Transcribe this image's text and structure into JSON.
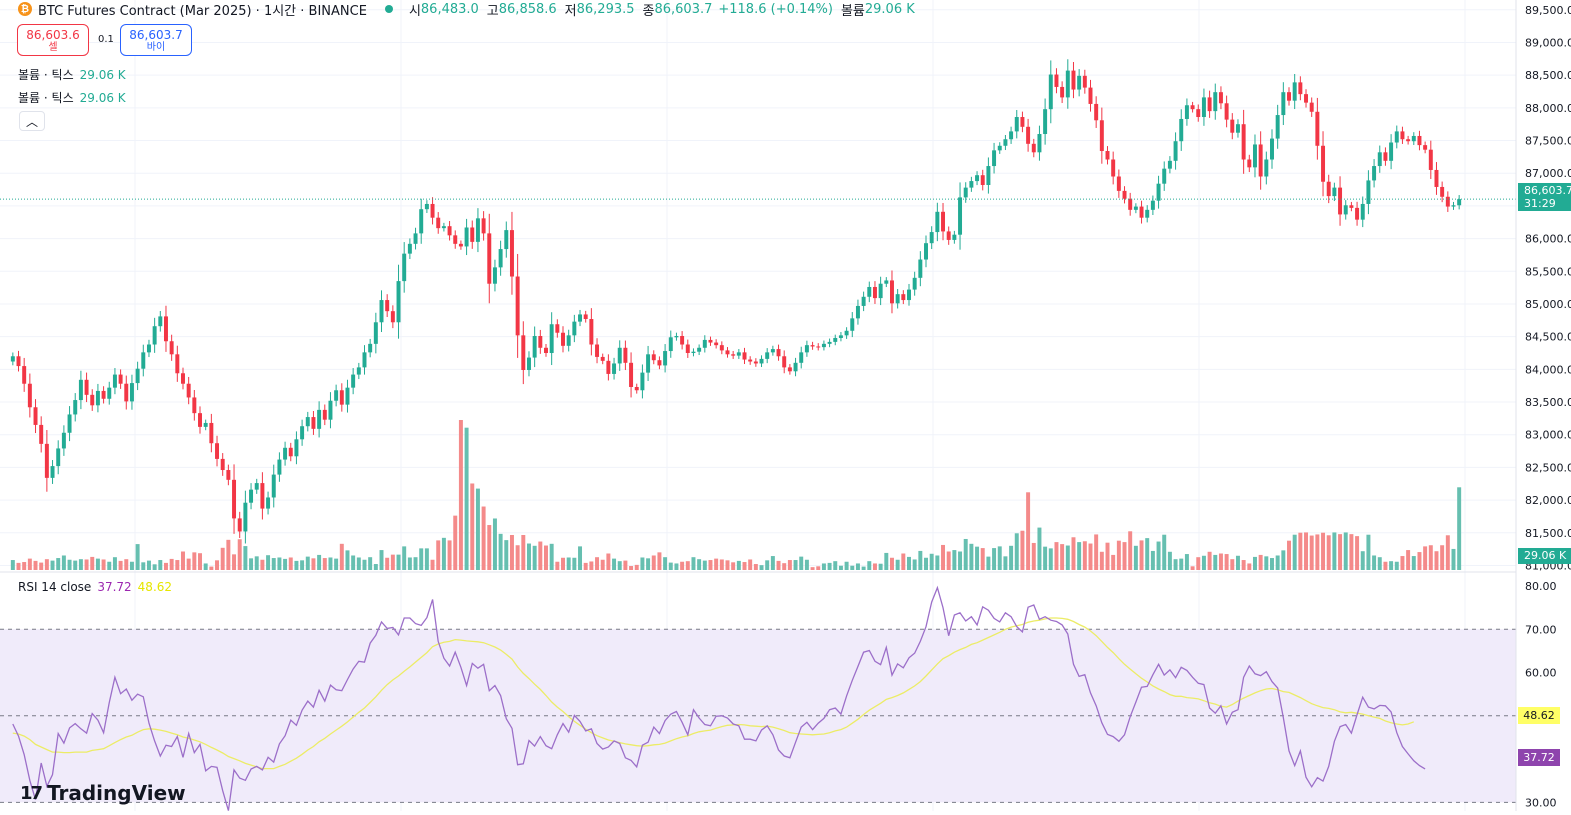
{
  "legend": {
    "symbol_icon": "bitcoin-icon",
    "title": "BTC Futures Contract (Mar 2025) · 1시간 · BINANCE",
    "o_label": "시",
    "o_value": "86,483.0",
    "h_label": "고",
    "h_value": "86,858.6",
    "l_label": "저",
    "l_value": "86,293.5",
    "c_label": "종",
    "c_value": "86,603.7",
    "change": "+118.6 (+0.14%)",
    "vol_label": "볼륨",
    "vol_value": "29.06 K"
  },
  "trade": {
    "sell_price": "86,603.6",
    "sell_label": "셀",
    "spread": "0.1",
    "buy_price": "86,603.7",
    "buy_label": "바이"
  },
  "indicators": [
    {
      "label": "볼륨 · 틱스",
      "value": "29.06 K"
    },
    {
      "label": "볼륨 · 틱스",
      "value": "29.06 K"
    }
  ],
  "rsi_legend": {
    "label": "RSI 14 close",
    "value": "37.72",
    "ma_value": "48.62"
  },
  "price_axis": {
    "labels": [
      "89,500.0",
      "89,000.0",
      "88,500.0",
      "88,000.0",
      "87,500.0",
      "87,000.0",
      "86,500.0",
      "86,000.0",
      "85,500.0",
      "85,000.0",
      "84,500.0",
      "84,000.0",
      "83,500.0",
      "83,000.0",
      "82,500.0",
      "82,000.0",
      "81,500.0",
      "81,000.0"
    ],
    "values": [
      89500,
      89000,
      88500,
      88000,
      87500,
      87000,
      86500,
      86000,
      85500,
      85000,
      84500,
      84000,
      83500,
      83000,
      82500,
      82000,
      81500,
      81000
    ]
  },
  "rsi_axis": {
    "labels": [
      "80.00",
      "70.00",
      "60.00",
      "50.00",
      "40.00",
      "30.00"
    ],
    "values": [
      80,
      70,
      60,
      50,
      40,
      30
    ]
  },
  "last_price_tag": {
    "price": "86,603.7",
    "countdown": "31:29"
  },
  "volume_tag": "29.06 K",
  "rsi_tags": {
    "ma": "48.62",
    "rsi": "37.72"
  },
  "colors": {
    "up": "#22ab94",
    "down": "#f23645",
    "up_vol": "#66bfb0",
    "down_vol": "#f48a8a",
    "rsi": "#9c6fc9",
    "rsi_ma": "#ecec66",
    "band_fill": "#f0ebfa"
  },
  "logo": {
    "icon": "tradingview-logo-icon",
    "text": "TradingView"
  },
  "chart_data": {
    "type": "candlestick",
    "close_values": [
      84200,
      84050,
      83780,
      83420,
      83150,
      82860,
      82340,
      82520,
      82790,
      83030,
      83310,
      83530,
      83840,
      83610,
      83450,
      83670,
      83550,
      83720,
      83920,
      83780,
      83510,
      83790,
      84010,
      84260,
      84380,
      84660,
      84810,
      84430,
      84230,
      83940,
      83780,
      83570,
      83330,
      83120,
      83180,
      82870,
      82630,
      82460,
      82310,
      81720,
      81520,
      81960,
      82160,
      82260,
      81870,
      82040,
      82390,
      82620,
      82800,
      82670,
      82930,
      83130,
      83270,
      83090,
      83380,
      83230,
      83520,
      83680,
      83460,
      83720,
      83920,
      84030,
      84260,
      84390,
      84720,
      85060,
      84890,
      84720,
      85350,
      85770,
      85920,
      86080,
      86450,
      86530,
      86320,
      86160,
      86190,
      86050,
      85920,
      85880,
      86170,
      85950,
      86310,
      86080,
      85310,
      85560,
      85840,
      86130,
      85420,
      84520,
      83990,
      84180,
      84510,
      84330,
      84250,
      84690,
      84560,
      84360,
      84520,
      84730,
      84840,
      84770,
      84380,
      84190,
      84130,
      83930,
      84090,
      84330,
      84100,
      83730,
      83680,
      83950,
      84230,
      84140,
      84060,
      84280,
      84490,
      84510,
      84380,
      84250,
      84270,
      84330,
      84450,
      84410,
      84370,
      84290,
      84230,
      84210,
      84260,
      84150,
      84120,
      84090,
      84160,
      84260,
      84310,
      84200,
      84030,
      83970,
      84100,
      84260,
      84370,
      84350,
      84340,
      84390,
      84420,
      84480,
      84520,
      84590,
      84780,
      84970,
      85110,
      85260,
      85090,
      85310,
      85360,
      85010,
      85150,
      85060,
      85220,
      85400,
      85680,
      85930,
      86100,
      86410,
      86110,
      85980,
      86060,
      86630,
      86780,
      86880,
      86970,
      86820,
      87110,
      87350,
      87420,
      87520,
      87640,
      87860,
      87710,
      87450,
      87320,
      87600,
      87980,
      88510,
      88320,
      88160,
      88570,
      88280,
      88490,
      88310,
      88060,
      87810,
      87340,
      87210,
      86950,
      86730,
      86610,
      86440,
      86490,
      86320,
      86440,
      86580,
      86840,
      87070,
      87190,
      87490,
      87830,
      88040,
      87980,
      87860,
      88160,
      87950,
      88240,
      88070,
      87820,
      87620,
      87750,
      87210,
      87090,
      87440,
      86950,
      87210,
      87530,
      87890,
      88240,
      88110,
      88390,
      88210,
      88080,
      87940,
      87420,
      86870,
      86650,
      86780,
      86370,
      86510,
      86470,
      86290,
      86530,
      86890,
      87110,
      87320,
      87190,
      87470,
      87640,
      87520,
      87490,
      87570,
      87430,
      87360,
      87050,
      86790,
      86640,
      86490,
      86510,
      86603.7
    ],
    "volume_values": [
      3.5,
      2.5,
      2.8,
      4.0,
      3.2,
      2.6,
      3.8,
      3.3,
      4.2,
      5.1,
      3.6,
      3.3,
      3.8,
      3.7,
      4.6,
      4.0,
      3.7,
      2.9,
      4.5,
      3.2,
      3.8,
      2.9,
      9.1,
      2.7,
      3.3,
      2.0,
      3.5,
      2.5,
      3.9,
      3.5,
      6.5,
      4.0,
      6.2,
      5.9,
      2.3,
      1.2,
      3.4,
      7.8,
      10.6,
      5.5,
      10.8,
      8.4,
      4.1,
      4.8,
      3.6,
      5.2,
      4.2,
      4.4,
      3.9,
      4.4,
      3.2,
      3.4,
      4.7,
      4.1,
      5.3,
      4.2,
      4.4,
      4.0,
      9.2,
      6.9,
      5.1,
      4.4,
      3.6,
      4.5,
      2.1,
      7.0,
      4.3,
      5.4,
      5.4,
      8.3,
      4.4,
      4.5,
      7.6,
      7.6,
      3.6,
      10.4,
      11.3,
      10.4,
      19.1,
      52.7,
      50.0,
      30.4,
      28.6,
      22.3,
      15.8,
      18.1,
      12.7,
      10.5,
      12.3,
      8.7,
      12.3,
      9.3,
      8.5,
      10.0,
      8.6,
      9.2,
      2.9,
      4.3,
      4.4,
      4.3,
      8.3,
      2.5,
      3.0,
      4.5,
      3.6,
      5.8,
      4.0,
      3.1,
      3.3,
      1.4,
      1.8,
      4.4,
      4.1,
      5.1,
      6.2,
      4.5,
      2.6,
      2.3,
      2.9,
      3.1,
      4.5,
      3.8,
      3.3,
      3.5,
      4.0,
      3.7,
      3.4,
      2.7,
      3.2,
      2.8,
      3.7,
      2.1,
      1.7,
      3.4,
      4.9,
      3.2,
      2.4,
      3.5,
      3.5,
      4.7,
      3.6,
      1.0,
      1.3,
      2.3,
      2.5,
      3.1,
      1.5,
      2.9,
      1.5,
      2.3,
      1.2,
      3.1,
      2.3,
      2.2,
      6.0,
      4.3,
      3.6,
      5.8,
      4.6,
      3.7,
      6.7,
      4.3,
      5.7,
      5.1,
      8.8,
      6.5,
      7.0,
      6.5,
      10.9,
      9.2,
      8.2,
      7.7,
      4.7,
      7.7,
      8.3,
      4.8,
      8.5,
      12.9,
      13.8,
      27.3,
      9.5,
      14.9,
      8.2,
      7.6,
      9.8,
      9.1,
      8.6,
      11.5,
      9.8,
      10.1,
      9.3,
      12.5,
      6.4,
      9.6,
      5.3,
      10.3,
      9.8,
      13.6,
      8.5,
      10.4,
      11.2,
      6.7,
      10.0,
      12.4,
      6.4,
      3.8,
      4.0,
      5.6,
      1.3,
      4.5,
      5.0,
      6.4,
      5.3,
      5.8,
      5.6,
      3.8,
      5.0,
      3.5,
      2.3,
      4.6,
      5.3,
      4.8,
      4.2,
      5.1,
      6.9,
      10.3,
      12.4,
      13.1,
      13.2,
      12.1,
      12.5,
      13.1,
      12.2,
      13.2,
      12.6,
      13.2,
      12.6,
      11.9,
      6.6,
      12.4,
      5.1,
      4.5,
      2.9,
      3.1,
      2.9,
      4.9,
      7.0,
      4.9,
      6.3,
      8.3,
      8.7,
      6.6,
      8.7,
      12.2,
      7.4,
      29.06
    ],
    "rsi_values": [
      48.1,
      45.3,
      41.0,
      35.0,
      30.6,
      39.1,
      33.7,
      36.4,
      45.9,
      43.7,
      47.2,
      48.2,
      47.0,
      46.0,
      50.5,
      49.0,
      46.1,
      53.1,
      58.9,
      55.1,
      56.2,
      53.6,
      55.0,
      54.4,
      48.3,
      44.2,
      40.7,
      43.2,
      42.9,
      45.2,
      40.4,
      45.9,
      41.5,
      43.4,
      37.3,
      38.3,
      38.1,
      32.7,
      28.1,
      37.5,
      35.6,
      35.1,
      37.7,
      38.3,
      37.5,
      40.4,
      39.3,
      43.5,
      45.4,
      49.0,
      47.8,
      51.3,
      53.4,
      52.0,
      55.9,
      53.4,
      57.1,
      56.0,
      55.8,
      58.4,
      60.8,
      62.6,
      62.4,
      66.8,
      68.6,
      71.7,
      70.2,
      70.4,
      68.7,
      72.6,
      72.6,
      71.3,
      70.9,
      72.7,
      76.9,
      67.2,
      63.3,
      61.5,
      64.7,
      61.2,
      57.0,
      62.1,
      61.0,
      61.9,
      55.8,
      57.0,
      54.7,
      49.3,
      47.1,
      38.7,
      38.9,
      44.3,
      43.0,
      45.2,
      43.1,
      42.4,
      45.6,
      48.2,
      46.2,
      50.1,
      48.7,
      46.5,
      47.0,
      43.6,
      42.3,
      42.8,
      44.2,
      43.6,
      40.3,
      39.7,
      38.2,
      43.2,
      43.9,
      47.4,
      45.9,
      48.9,
      50.4,
      51.0,
      48.5,
      45.6,
      51.4,
      49.5,
      48.0,
      47.7,
      49.9,
      50.0,
      49.5,
      48.1,
      47.7,
      44.6,
      44.6,
      44.2,
      46.7,
      47.7,
      45.6,
      42.1,
      40.7,
      40.3,
      43.9,
      47.4,
      48.5,
      46.8,
      48.3,
      49.4,
      51.4,
      51.8,
      50.4,
      54.6,
      58.2,
      61.4,
      64.7,
      65.1,
      62.6,
      61.8,
      65.8,
      59.4,
      62.0,
      61.1,
      63.4,
      64.5,
      67.2,
      70.6,
      76.3,
      79.6,
      75.0,
      68.5,
      73.3,
      73.8,
      71.9,
      72.9,
      71.0,
      75.2,
      74.4,
      72.5,
      71.7,
      73.8,
      72.9,
      70.6,
      69.4,
      75.1,
      75.6,
      72.3,
      72.9,
      72.1,
      71.8,
      71.0,
      68.9,
      61.9,
      59.1,
      59.5,
      55.3,
      52.3,
      48.4,
      45.7,
      45.2,
      44.1,
      45.6,
      49.8,
      53.2,
      56.6,
      56.8,
      59.5,
      61.9,
      59.4,
      60.6,
      58.8,
      61.2,
      60.5,
      58.9,
      57.5,
      57.2,
      51.8,
      50.6,
      52.3,
      48.1,
      50.8,
      51.4,
      58.9,
      61.5,
      59.7,
      59.3,
      60.2,
      57.9,
      56.4,
      49.6,
      41.9,
      38.5,
      41.9,
      35.8,
      33.6,
      35.7,
      34.9,
      38.3,
      44.1,
      47.5,
      48.0,
      46.0,
      50.3,
      54.3,
      52.0,
      51.6,
      52.4,
      52.3,
      50.9,
      46.1,
      42.9,
      41.2,
      39.6,
      38.5,
      37.72
    ],
    "rsi_ma_values": [
      46.0,
      45.8,
      45.3,
      44.5,
      43.4,
      42.8,
      42.2,
      41.6,
      41.6,
      41.5,
      41.5,
      41.6,
      41.6,
      41.6,
      42.0,
      42.2,
      42.4,
      43.1,
      43.8,
      44.5,
      45.1,
      45.5,
      46.2,
      46.8,
      47.0,
      46.9,
      46.7,
      46.4,
      46.0,
      45.6,
      45.1,
      44.8,
      44.4,
      44.0,
      43.4,
      42.7,
      42.1,
      41.4,
      40.6,
      40.1,
      39.6,
      39.0,
      38.6,
      38.2,
      37.8,
      37.8,
      37.8,
      38.3,
      38.8,
      39.5,
      40.2,
      41.1,
      42.1,
      42.9,
      44.0,
      44.8,
      45.8,
      46.7,
      47.6,
      48.6,
      49.7,
      50.8,
      51.8,
      53.1,
      54.4,
      55.9,
      57.2,
      58.3,
      59.2,
      60.3,
      61.3,
      62.4,
      63.5,
      64.6,
      66.0,
      66.6,
      67.0,
      67.2,
      67.6,
      67.5,
      67.3,
      67.2,
      67.1,
      66.9,
      66.4,
      65.9,
      65.2,
      64.2,
      63.1,
      61.3,
      59.8,
      58.6,
      57.3,
      56.1,
      54.7,
      53.2,
      52.0,
      51.0,
      49.8,
      48.7,
      47.8,
      46.9,
      46.1,
      45.4,
      44.9,
      44.4,
      44.1,
      43.8,
      43.5,
      43.3,
      43.1,
      43.0,
      43.1,
      43.3,
      43.4,
      43.7,
      44.2,
      44.7,
      45.1,
      45.4,
      45.9,
      46.3,
      46.5,
      46.7,
      47.1,
      47.5,
      47.8,
      47.9,
      48.0,
      47.9,
      47.7,
      47.6,
      47.5,
      47.6,
      47.4,
      47.0,
      46.6,
      46.1,
      45.9,
      45.8,
      45.7,
      45.6,
      45.7,
      45.8,
      46.1,
      46.5,
      46.8,
      47.4,
      48.3,
      49.2,
      50.3,
      51.3,
      52.1,
      52.9,
      53.8,
      54.2,
      54.7,
      55.3,
      56.1,
      56.9,
      57.9,
      59.2,
      60.6,
      62.0,
      63.2,
      63.9,
      64.7,
      65.3,
      65.8,
      66.5,
      66.9,
      67.5,
      68.1,
      68.7,
      69.3,
      70.0,
      70.5,
      70.8,
      71.1,
      71.6,
      71.9,
      72.1,
      72.4,
      72.6,
      72.6,
      72.5,
      72.3,
      71.8,
      71.1,
      70.5,
      69.6,
      68.5,
      67.2,
      65.8,
      64.6,
      63.2,
      61.9,
      60.8,
      59.7,
      58.7,
      57.8,
      56.9,
      56.2,
      55.6,
      54.9,
      54.5,
      54.5,
      54.2,
      54.1,
      53.9,
      53.5,
      53.0,
      52.7,
      52.2,
      52.0,
      52.6,
      53.4,
      54.1,
      54.7,
      55.3,
      55.8,
      56.2,
      56.3,
      56.0,
      55.6,
      55.4,
      54.8,
      54.2,
      53.5,
      52.8,
      52.3,
      51.9,
      51.7,
      51.4,
      50.9,
      50.7,
      50.8,
      50.6,
      50.4,
      50.0,
      49.7,
      49.4,
      48.8,
      48.4,
      48.1,
      47.9,
      48.1,
      48.62
    ],
    "y_range": [
      80900,
      89650
    ],
    "rsi_range": [
      28,
      83
    ],
    "rsi_bands": [
      70,
      50,
      30
    ]
  }
}
